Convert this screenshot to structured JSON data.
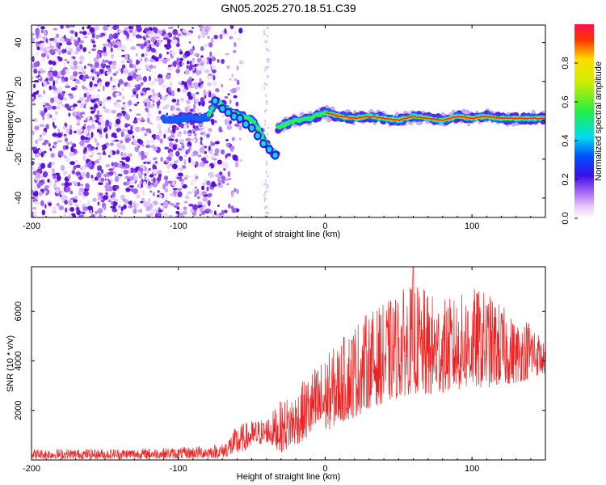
{
  "title": "GN05.2025.270.18.51.C39",
  "colors": {
    "snr_line": "#ee2222",
    "ridge_peak": "#ff2200",
    "noise": "#9955ee"
  },
  "chart_data": [
    {
      "type": "heatmap",
      "name": "spectrogram",
      "xlabel": "Height of straight line (km)",
      "ylabel": "Frequency (Hz)",
      "xlim": [
        -200,
        150
      ],
      "ylim": [
        -50,
        49
      ],
      "xticks": [
        -200,
        -100,
        0,
        100
      ],
      "yticks": [
        -40,
        -20,
        0,
        20,
        40
      ],
      "grid": false,
      "colorbar": {
        "label": "Normalized spectral amplitude",
        "range": [
          0,
          1
        ],
        "ticks": [
          "0.0",
          "0.2",
          "0.4",
          "0.6",
          "0.8"
        ],
        "colormap": "rainbow (white, magenta, blue, cyan, green, yellow, red)"
      },
      "features": {
        "noise_band_x": [
          -200,
          -65
        ],
        "ridge_points": [
          [
            -110,
            1
          ],
          [
            -100,
            1
          ],
          [
            -90,
            1
          ],
          [
            -80,
            1
          ],
          [
            -75,
            10
          ],
          [
            -70,
            8
          ],
          [
            -65,
            5
          ],
          [
            -60,
            3
          ],
          [
            -55,
            2
          ],
          [
            -50,
            0
          ],
          [
            -45,
            -5
          ],
          [
            -42,
            -10
          ],
          [
            -38,
            -14
          ],
          [
            -33,
            -18
          ],
          [
            -40,
            -2
          ],
          [
            -35,
            -5
          ],
          [
            -30,
            -3
          ],
          [
            -20,
            0
          ],
          [
            -10,
            1
          ],
          [
            0,
            4
          ],
          [
            10,
            2
          ],
          [
            20,
            1
          ],
          [
            30,
            2
          ],
          [
            40,
            1
          ],
          [
            50,
            0
          ],
          [
            60,
            2
          ],
          [
            70,
            1
          ],
          [
            80,
            0
          ],
          [
            90,
            2
          ],
          [
            100,
            1
          ],
          [
            110,
            2
          ],
          [
            120,
            1
          ],
          [
            130,
            1
          ],
          [
            140,
            1
          ],
          [
            150,
            1
          ]
        ],
        "amplitude_note": "High amplitude (red) along the 0-2 Hz ridge from x = 0 to x = 150 km"
      }
    },
    {
      "type": "line",
      "name": "snr",
      "xlabel": "Height of straight line (km)",
      "ylabel": "SNR (10 * v/v)",
      "xlim": [
        -200,
        150
      ],
      "ylim": [
        0,
        7800
      ],
      "xticks": [
        -200,
        -100,
        0,
        100
      ],
      "yticks": [
        2000,
        4000,
        6000
      ],
      "grid": false,
      "series": [
        {
          "name": "SNR",
          "envelope_x": [
            -200,
            -150,
            -100,
            -70,
            -60,
            -50,
            -40,
            -30,
            -20,
            -10,
            0,
            10,
            20,
            30,
            40,
            50,
            60,
            70,
            80,
            90,
            100,
            110,
            120,
            130,
            140,
            150
          ],
          "envelope_low": [
            50,
            50,
            60,
            80,
            200,
            500,
            700,
            300,
            600,
            900,
            1100,
            1500,
            1700,
            2100,
            2300,
            2500,
            2700,
            2500,
            2700,
            2800,
            2900,
            2900,
            3000,
            3100,
            3300,
            3500
          ],
          "envelope_high": [
            450,
            450,
            500,
            650,
            1400,
            1600,
            1700,
            2400,
            2800,
            3600,
            4200,
            4800,
            5600,
            6000,
            6300,
            6800,
            7200,
            6800,
            6500,
            6600,
            7000,
            6800,
            6300,
            5600,
            5800,
            4600
          ],
          "peak": {
            "x": 60,
            "y": 7800
          }
        }
      ]
    }
  ]
}
